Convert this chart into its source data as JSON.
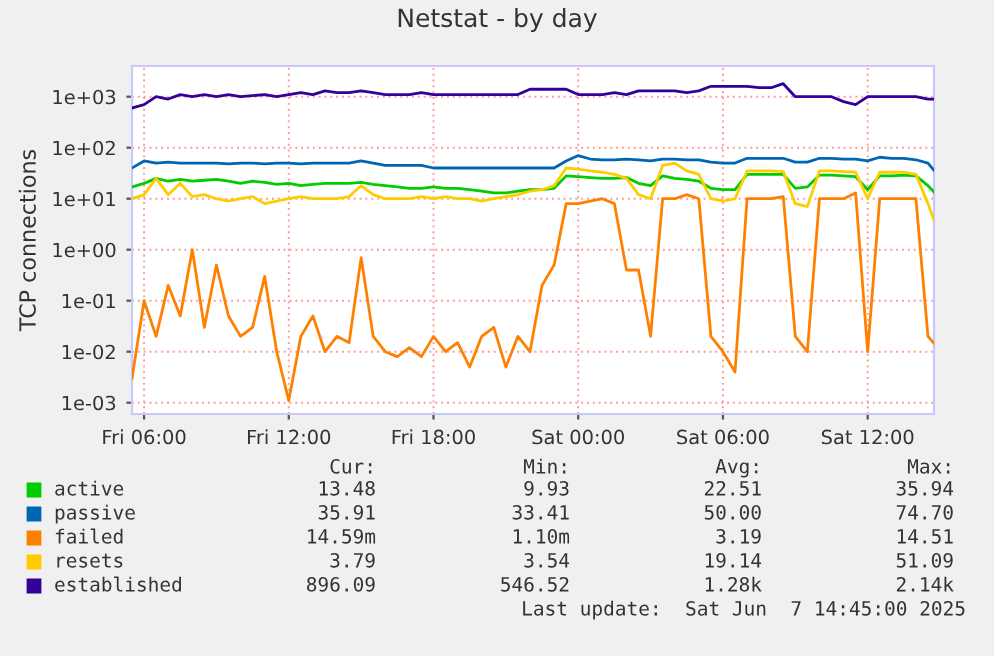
{
  "chart_data": {
    "type": "line",
    "title": "Netstat - by day",
    "ylabel": "TCP connections",
    "x": [
      "2025-06-06T05:30",
      "2025-06-06T06:00",
      "2025-06-06T06:30",
      "2025-06-06T07:00",
      "2025-06-06T07:30",
      "2025-06-06T08:00",
      "2025-06-06T08:30",
      "2025-06-06T09:00",
      "2025-06-06T09:30",
      "2025-06-06T10:00",
      "2025-06-06T10:30",
      "2025-06-06T11:00",
      "2025-06-06T11:30",
      "2025-06-06T12:00",
      "2025-06-06T12:30",
      "2025-06-06T13:00",
      "2025-06-06T13:30",
      "2025-06-06T14:00",
      "2025-06-06T14:30",
      "2025-06-06T15:00",
      "2025-06-06T15:30",
      "2025-06-06T16:00",
      "2025-06-06T16:30",
      "2025-06-06T17:00",
      "2025-06-06T17:30",
      "2025-06-06T18:00",
      "2025-06-06T18:30",
      "2025-06-06T19:00",
      "2025-06-06T19:30",
      "2025-06-06T20:00",
      "2025-06-06T20:30",
      "2025-06-06T21:00",
      "2025-06-06T21:30",
      "2025-06-06T22:00",
      "2025-06-06T22:30",
      "2025-06-06T23:00",
      "2025-06-06T23:30",
      "2025-06-07T00:00",
      "2025-06-07T00:30",
      "2025-06-07T01:00",
      "2025-06-07T01:30",
      "2025-06-07T02:00",
      "2025-06-07T02:30",
      "2025-06-07T03:00",
      "2025-06-07T03:30",
      "2025-06-07T04:00",
      "2025-06-07T04:30",
      "2025-06-07T05:00",
      "2025-06-07T05:30",
      "2025-06-07T06:00",
      "2025-06-07T06:30",
      "2025-06-07T07:00",
      "2025-06-07T07:30",
      "2025-06-07T08:00",
      "2025-06-07T08:30",
      "2025-06-07T09:00",
      "2025-06-07T09:30",
      "2025-06-07T10:00",
      "2025-06-07T10:30",
      "2025-06-07T11:00",
      "2025-06-07T11:30",
      "2025-06-07T12:00",
      "2025-06-07T12:30",
      "2025-06-07T13:00",
      "2025-06-07T13:30",
      "2025-06-07T14:00",
      "2025-06-07T14:30",
      "2025-06-07T14:45"
    ],
    "series": [
      {
        "name": "active",
        "color": "#00cc00",
        "values": [
          17,
          20,
          25,
          22,
          24,
          22,
          23,
          24,
          22,
          20,
          22,
          21,
          19,
          20,
          18,
          19,
          20,
          20,
          20,
          21,
          19,
          18,
          17,
          16,
          16,
          17,
          16,
          16,
          15,
          14,
          13,
          13,
          14,
          15,
          15,
          16,
          28,
          27,
          26,
          25,
          25,
          26,
          20,
          18,
          28,
          25,
          24,
          22,
          16,
          15,
          15,
          30,
          30,
          30,
          30,
          16,
          17,
          29,
          29,
          28,
          27,
          15,
          28,
          28,
          29,
          28,
          18,
          13.48
        ]
      },
      {
        "name": "passive",
        "color": "#0066b3",
        "values": [
          40,
          55,
          50,
          52,
          50,
          50,
          50,
          50,
          48,
          50,
          50,
          48,
          50,
          50,
          48,
          50,
          50,
          50,
          50,
          55,
          50,
          45,
          45,
          45,
          45,
          40,
          40,
          40,
          40,
          40,
          40,
          40,
          40,
          40,
          40,
          40,
          55,
          70,
          60,
          58,
          58,
          60,
          58,
          55,
          60,
          60,
          58,
          58,
          52,
          50,
          50,
          62,
          62,
          62,
          62,
          52,
          52,
          62,
          62,
          60,
          60,
          55,
          65,
          62,
          62,
          58,
          50,
          35.91
        ]
      },
      {
        "name": "failed",
        "color": "#ff8000",
        "values": [
          0.003,
          0.1,
          0.02,
          0.2,
          0.05,
          1.0,
          0.03,
          0.5,
          0.05,
          0.02,
          0.03,
          0.3,
          0.01,
          0.0011,
          0.02,
          0.05,
          0.01,
          0.02,
          0.015,
          0.7,
          0.02,
          0.01,
          0.008,
          0.012,
          0.008,
          0.02,
          0.01,
          0.015,
          0.005,
          0.02,
          0.03,
          0.005,
          0.02,
          0.01,
          0.2,
          0.5,
          8,
          8,
          9,
          10,
          8,
          0.4,
          0.4,
          0.02,
          10,
          10,
          12,
          10,
          0.02,
          0.01,
          0.004,
          10,
          10,
          10,
          11,
          0.02,
          0.01,
          10,
          10,
          10,
          13,
          0.01,
          10,
          10,
          10,
          10,
          0.02,
          0.0146
        ]
      },
      {
        "name": "resets",
        "color": "#ffcc00",
        "values": [
          10,
          12,
          25,
          12,
          20,
          11,
          12,
          10,
          9,
          10,
          11,
          8,
          9,
          10,
          11,
          10,
          10,
          10,
          11,
          18,
          12,
          10,
          10,
          10,
          11,
          10,
          11,
          10,
          10,
          9,
          10,
          11,
          12,
          14,
          15,
          18,
          40,
          38,
          35,
          33,
          30,
          25,
          12,
          10,
          45,
          50,
          35,
          30,
          10,
          9,
          10,
          35,
          35,
          35,
          34,
          8,
          7,
          35,
          35,
          34,
          33,
          10,
          33,
          33,
          33,
          30,
          8,
          3.79
        ]
      },
      {
        "name": "established",
        "color": "#330099",
        "values": [
          600,
          700,
          1000,
          900,
          1100,
          1000,
          1100,
          1000,
          1100,
          1000,
          1050,
          1100,
          1000,
          1100,
          1200,
          1100,
          1300,
          1200,
          1200,
          1300,
          1200,
          1100,
          1100,
          1100,
          1200,
          1100,
          1100,
          1100,
          1100,
          1100,
          1100,
          1100,
          1100,
          1400,
          1400,
          1400,
          1400,
          1100,
          1100,
          1100,
          1200,
          1100,
          1300,
          1300,
          1300,
          1300,
          1200,
          1300,
          1600,
          1600,
          1600,
          1600,
          1500,
          1500,
          1800,
          1000,
          1000,
          1000,
          1000,
          800,
          700,
          1000,
          1000,
          1000,
          1000,
          1000,
          900,
          896.09
        ]
      }
    ],
    "log": "y",
    "ylim": [
      0.0006,
      4000
    ],
    "yticks": [
      {
        "value": 0.001,
        "label": "1e-03"
      },
      {
        "value": 0.01,
        "label": "1e-02"
      },
      {
        "value": 0.1,
        "label": "1e-01"
      },
      {
        "value": 1,
        "label": "1e+00"
      },
      {
        "value": 10,
        "label": "1e+01"
      },
      {
        "value": 100,
        "label": "1e+02"
      },
      {
        "value": 1000,
        "label": "1e+03"
      }
    ],
    "xlim": [
      "2025-06-06T05:30",
      "2025-06-07T14:45"
    ],
    "xticks": [
      {
        "value": "2025-06-06T06:00",
        "label": "Fri 06:00"
      },
      {
        "value": "2025-06-06T12:00",
        "label": "Fri 12:00"
      },
      {
        "value": "2025-06-06T18:00",
        "label": "Fri 18:00"
      },
      {
        "value": "2025-06-07T00:00",
        "label": "Sat 00:00"
      },
      {
        "value": "2025-06-07T06:00",
        "label": "Sat 06:00"
      },
      {
        "value": "2025-06-07T12:00",
        "label": "Sat 12:00"
      }
    ],
    "grid": true,
    "legend": "bottom",
    "annotations": [
      "Cur:",
      "Min:",
      "Avg:",
      "Max:",
      "13.48",
      "9.93",
      "22.51",
      "35.94",
      "35.91",
      "33.41",
      "50.00",
      "74.70",
      "14.59m",
      "1.10m",
      "3.19",
      "14.51",
      "3.79",
      "3.54",
      "19.14",
      "51.09",
      "896.09",
      "546.52",
      "1.28k",
      "2.14k",
      "Last update:  Sat Jun  7 14:45:00 2025"
    ]
  }
}
